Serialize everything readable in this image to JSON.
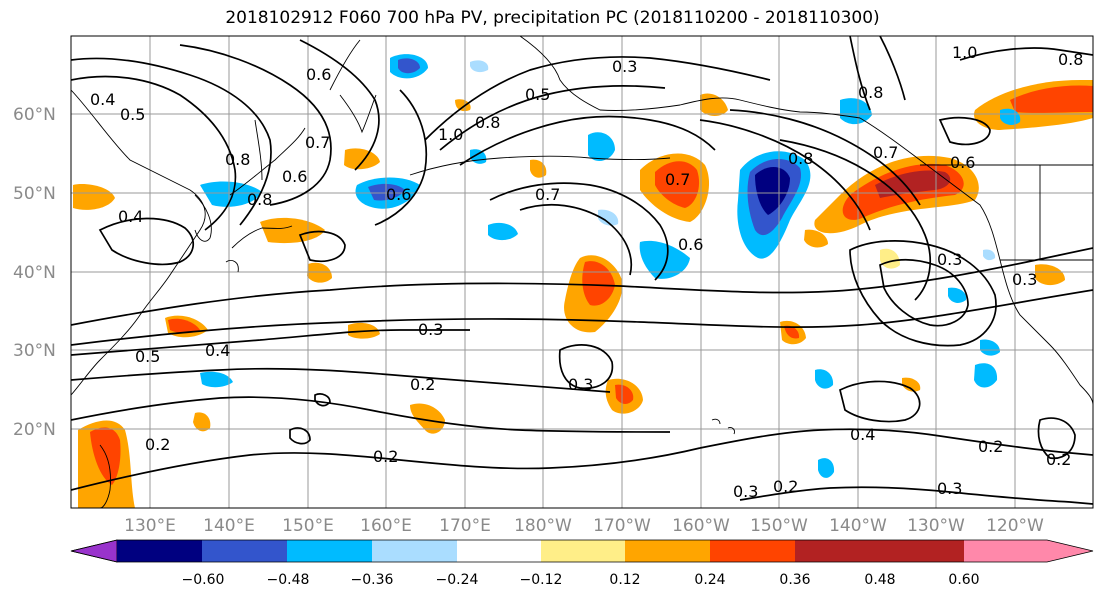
{
  "title": "2018102912 F060 700 hPa PV, precipitation PC (2018110200 - 2018110300)",
  "lat_labels": [
    "60°N",
    "50°N",
    "40°N",
    "30°N",
    "20°N"
  ],
  "lon_labels": [
    "130°E",
    "140°E",
    "150°E",
    "160°E",
    "170°E",
    "180°W",
    "170°W",
    "160°W",
    "150°W",
    "140°W",
    "130°W",
    "120°W"
  ],
  "contour_labels": [
    "0.6",
    "0.7",
    "0.6",
    "0.8",
    "0.8",
    "1.0",
    "0.8",
    "0.5",
    "0.6",
    "0.4",
    "0.4",
    "0.5",
    "0.7",
    "0.7",
    "0.6",
    "0.8",
    "0.8",
    "0.7",
    "0.6",
    "0.3",
    "0.3",
    "0.3",
    "0.4",
    "0.5",
    "0.3",
    "0.2",
    "0.3",
    "0.2",
    "0.2",
    "0.2",
    "0.4",
    "0.2",
    "0.3",
    "0.3",
    "1.0",
    "0.8",
    "0.2"
  ],
  "colorbar": {
    "colors": [
      "#9933cc",
      "#000080",
      "#3355cc",
      "#00bbff",
      "#aaddff",
      "#ffffff",
      "#ffee88",
      "#ffa500",
      "#ff4400",
      "#b22222",
      "#ff88aa"
    ],
    "ticks": [
      "−0.60",
      "−0.48",
      "−0.36",
      "−0.24",
      "−0.12",
      "0.12",
      "0.24",
      "0.36",
      "0.48",
      "0.60"
    ]
  }
}
